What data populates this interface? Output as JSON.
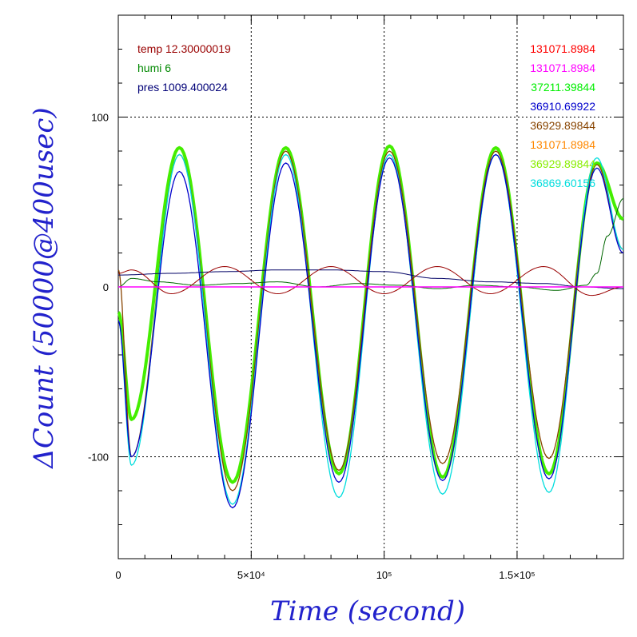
{
  "chart_data": {
    "type": "line",
    "xlabel": "Time (second)",
    "ylabel": "ΔCount (50000@400usec)",
    "xlim": [
      0,
      190000
    ],
    "ylim": [
      -160,
      160
    ],
    "grid": true,
    "x_ticks": [
      {
        "value": 0,
        "label": "0"
      },
      {
        "value": 50000,
        "label": "5×10⁴"
      },
      {
        "value": 100000,
        "label": "10⁵"
      },
      {
        "value": 150000,
        "label": "1.5×10⁵"
      }
    ],
    "y_ticks": [
      {
        "value": -100,
        "label": "-100"
      },
      {
        "value": 0,
        "label": "0"
      },
      {
        "value": 100,
        "label": "100"
      }
    ],
    "env_labels": [
      {
        "text": "temp 12.30000019",
        "color": "#990000"
      },
      {
        "text": "humi 6",
        "color": "#008800"
      },
      {
        "text": "pres 1009.400024",
        "color": "#000077"
      }
    ],
    "series_labels": [
      {
        "text": "131071.8984",
        "color": "#ff0000"
      },
      {
        "text": "131071.8984",
        "color": "#ff00ff"
      },
      {
        "text": "37211.39844",
        "color": "#00ee00"
      },
      {
        "text": "36910.69922",
        "color": "#0000cc"
      },
      {
        "text": "36929.89844",
        "color": "#884400"
      },
      {
        "text": "131071.8984",
        "color": "#ff8800"
      },
      {
        "text": "36929.89844",
        "color": "#88ee00"
      },
      {
        "text": "36869.60156",
        "color": "#00dddd"
      }
    ],
    "series": [
      {
        "color": "#44ee00",
        "width": 4,
        "x": [
          0,
          5000,
          23000,
          43000,
          63000,
          83000,
          102000,
          122000,
          142000,
          162000,
          180000,
          190000
        ],
        "values": [
          -15,
          -78,
          82,
          -115,
          82,
          -110,
          83,
          -112,
          82,
          -110,
          73,
          40
        ]
      },
      {
        "color": "#884400",
        "width": 1.3,
        "x": [
          0,
          5000,
          23000,
          43000,
          63000,
          83000,
          102000,
          122000,
          142000,
          162000,
          180000,
          190000
        ],
        "values": [
          10,
          -100,
          78,
          -120,
          80,
          -108,
          80,
          -104,
          80,
          -101,
          72,
          22
        ]
      },
      {
        "color": "#00dddd",
        "width": 1.3,
        "x": [
          0,
          5000,
          23000,
          43000,
          63000,
          83000,
          102000,
          122000,
          142000,
          162000,
          180000,
          190000
        ],
        "values": [
          -20,
          -105,
          78,
          -128,
          78,
          -124,
          78,
          -122,
          78,
          -121,
          76,
          22
        ]
      },
      {
        "color": "#0000cc",
        "width": 1.3,
        "x": [
          0,
          5000,
          23000,
          43000,
          63000,
          83000,
          102000,
          122000,
          142000,
          162000,
          180000,
          190000
        ],
        "values": [
          -20,
          -100,
          68,
          -130,
          73,
          -115,
          76,
          -114,
          78,
          -113,
          70,
          20
        ]
      },
      {
        "color": "#006600",
        "width": 1,
        "x": [
          0,
          5000,
          15000,
          30000,
          45000,
          60000,
          75000,
          90000,
          105000,
          120000,
          135000,
          150000,
          165000,
          176000,
          180000,
          184000,
          190000
        ],
        "values": [
          0,
          5,
          3,
          1,
          2,
          3,
          0,
          2,
          1,
          -1,
          1,
          0,
          -2,
          1,
          8,
          30,
          52
        ]
      },
      {
        "color": "#000066",
        "width": 1,
        "x": [
          0,
          20000,
          40000,
          60000,
          80000,
          100000,
          120000,
          140000,
          160000,
          175000,
          190000
        ],
        "values": [
          7,
          8,
          9,
          10,
          10,
          9,
          5,
          3,
          2,
          0,
          -1
        ]
      },
      {
        "color": "#990000",
        "width": 1,
        "x": [
          0,
          5000,
          20000,
          40000,
          60000,
          80000,
          100000,
          120000,
          140000,
          160000,
          178000,
          190000
        ],
        "values": [
          8,
          10,
          -4,
          12,
          -4,
          12,
          -4,
          12,
          -4,
          12,
          -5,
          0
        ]
      },
      {
        "color": "#ff00ff",
        "width": 1.5,
        "x": [
          0,
          190000
        ],
        "values": [
          0,
          0
        ]
      }
    ]
  }
}
